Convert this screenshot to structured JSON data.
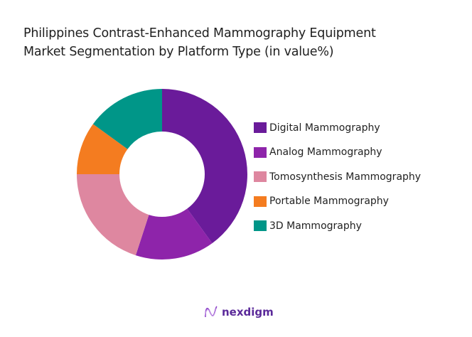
{
  "title": {
    "line1": "Philippines Contrast-Enhanced Mammography Equipment",
    "line2": "Market Segmentation by Platform Type (in value%)"
  },
  "chart_data": {
    "type": "pie",
    "variant": "donut",
    "title": "Philippines Contrast-Enhanced Mammography Equipment Market Segmentation by Platform Type (in value%)",
    "categories": [
      "Digital Mammography",
      "Analog Mammography",
      "Tomosynthesis Mammography",
      "Portable Mammography",
      "3D Mammography"
    ],
    "values": [
      40,
      15,
      20,
      10,
      15
    ],
    "colors": [
      "#6a1b9a",
      "#8e24aa",
      "#de87a0",
      "#f47c20",
      "#009688"
    ],
    "legend_position": "right",
    "start_angle": "top, clockwise"
  },
  "legend": {
    "items": [
      {
        "label": "Digital Mammography",
        "color": "#6a1b9a"
      },
      {
        "label": "Analog Mammography",
        "color": "#8e24aa"
      },
      {
        "label": "Tomosynthesis Mammography",
        "color": "#de87a0"
      },
      {
        "label": "Portable Mammography",
        "color": "#f47c20"
      },
      {
        "label": "3D Mammography",
        "color": "#009688"
      }
    ]
  },
  "footer": {
    "brand": "nexdigm",
    "brand_color": "#5b2a9a"
  }
}
